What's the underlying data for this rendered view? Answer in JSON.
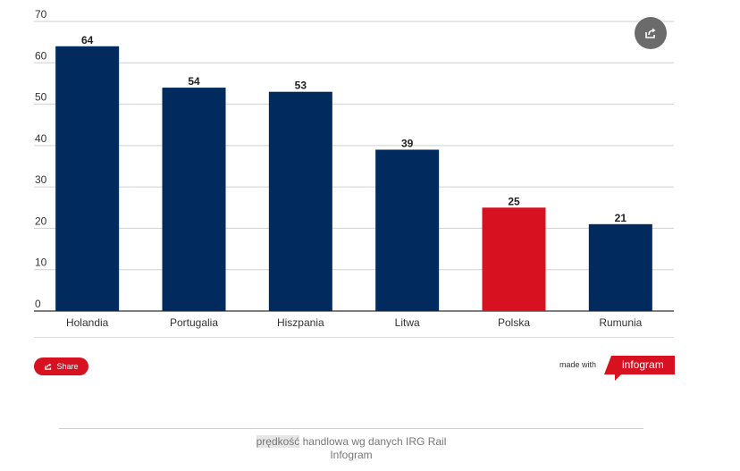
{
  "chart_data": {
    "type": "bar",
    "categories": [
      "Holandia",
      "Portugalia",
      "Hiszpania",
      "Litwa",
      "Polska",
      "Rumunia"
    ],
    "values": [
      64,
      54,
      53,
      39,
      25,
      21
    ],
    "colors": [
      "#012a5e",
      "#012a5e",
      "#012a5e",
      "#012a5e",
      "#d7111f",
      "#012a5e"
    ],
    "title": "",
    "xlabel": "",
    "ylabel": "",
    "ylim": [
      0,
      70
    ],
    "yticks": [
      0,
      10,
      20,
      30,
      40,
      50,
      60,
      70
    ],
    "grid": true,
    "legend": "none",
    "data_labels": true
  },
  "toolbar": {
    "share_icon": "share-icon",
    "share_label": "Share"
  },
  "branding": {
    "made_with": "made with",
    "logo": "infogram"
  },
  "caption": {
    "highlight": "prędkość",
    "line1_rest": " handlowa wg danych IRG Rail",
    "line2": "Infogram"
  },
  "colors": {
    "bar_primary": "#012a5e",
    "bar_highlight": "#d7111f",
    "accent": "#d7111f"
  }
}
